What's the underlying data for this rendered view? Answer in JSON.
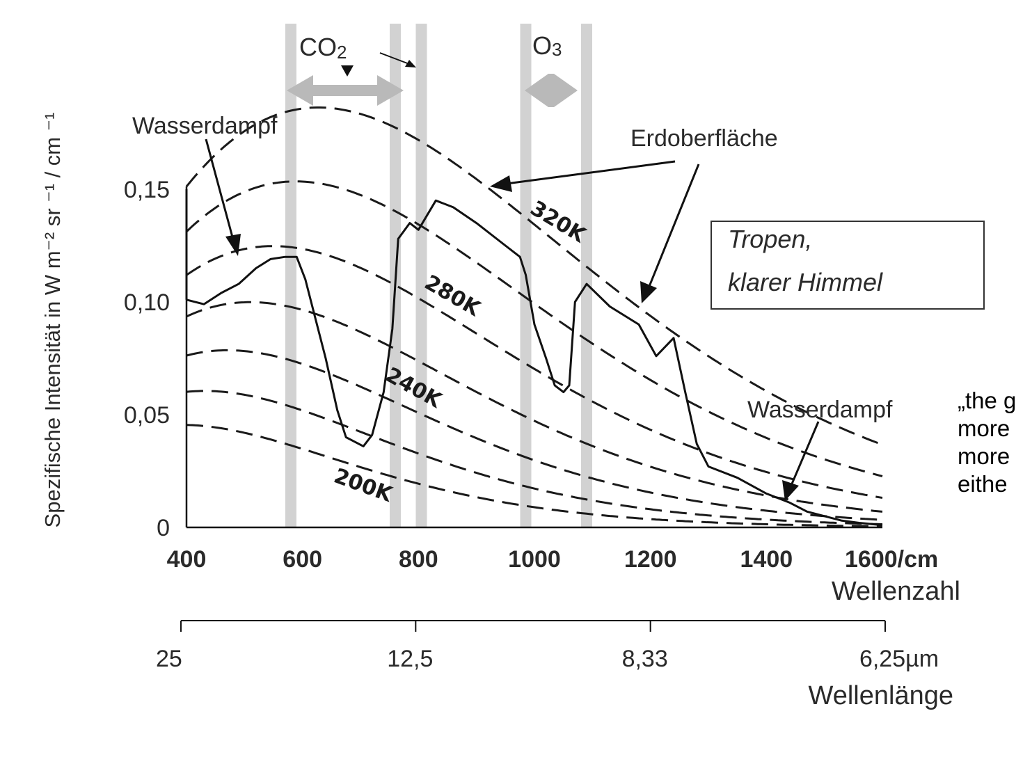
{
  "chart_data": {
    "type": "line",
    "ylabel": "Spezifische Intensität in W m⁻² sr ⁻¹ / cm ⁻¹",
    "xlabel": "Wellenzahl",
    "x_unit_label": "1600/cm",
    "x_ticks": [
      "400",
      "600",
      "800",
      "1000",
      "1200",
      "1400"
    ],
    "y_ticks": [
      "0,15",
      "0,10",
      "0,05",
      "0"
    ],
    "xlim": [
      400,
      1600
    ],
    "ylim": [
      0,
      0.15
    ],
    "secondary_axis": {
      "label": "Wellenlänge",
      "ticks": [
        {
          "label": "25",
          "wavenumber": 400
        },
        {
          "label": "12,5",
          "wavenumber": 800
        },
        {
          "label": "8,33",
          "wavenumber": 1200
        },
        {
          "label": "6,25µm",
          "wavenumber": 1600
        }
      ]
    },
    "planck_curves": [
      {
        "name": "320K",
        "temperature": 320
      },
      {
        "name": "300K",
        "temperature": 300
      },
      {
        "name": "280K",
        "temperature": 280
      },
      {
        "name": "260K",
        "temperature": 260
      },
      {
        "name": "240K",
        "temperature": 240
      },
      {
        "name": "220K",
        "temperature": 220
      },
      {
        "name": "200K",
        "temperature": 200
      }
    ],
    "temperature_labels": [
      "320K",
      "280K",
      "240K",
      "200K"
    ],
    "absorption_bands": [
      {
        "name": "CO2",
        "from": 580,
        "to": 780
      },
      {
        "name": "O3",
        "from": 985,
        "to": 1090
      }
    ],
    "band_lines": [
      580,
      760,
      805,
      985,
      1090
    ],
    "annotations": [
      "Wasserdampf",
      "Erdoberfläche",
      "Wasserdampf"
    ],
    "band_labels": {
      "co2_main": "CO",
      "co2_sub": "2",
      "o3_main": "O",
      "o3_sub": "3"
    },
    "legend_box": {
      "line1": "Tropen,",
      "line2": "klarer Himmel"
    },
    "measured_spectrum": {
      "name": "measured",
      "x": [
        400,
        430,
        460,
        490,
        520,
        545,
        570,
        590,
        605,
        620,
        640,
        660,
        675,
        690,
        705,
        720,
        740,
        755,
        765,
        785,
        800,
        830,
        860,
        900,
        950,
        975,
        985,
        1000,
        1020,
        1035,
        1050,
        1060,
        1070,
        1090,
        1130,
        1180,
        1210,
        1240,
        1260,
        1280,
        1300,
        1320,
        1350,
        1400,
        1440,
        1470,
        1500,
        1530,
        1560,
        1600
      ],
      "y": [
        0.101,
        0.099,
        0.104,
        0.108,
        0.115,
        0.119,
        0.12,
        0.12,
        0.11,
        0.095,
        0.075,
        0.052,
        0.04,
        0.038,
        0.036,
        0.041,
        0.06,
        0.088,
        0.128,
        0.135,
        0.132,
        0.145,
        0.142,
        0.135,
        0.125,
        0.12,
        0.112,
        0.09,
        0.075,
        0.063,
        0.06,
        0.063,
        0.1,
        0.108,
        0.098,
        0.09,
        0.076,
        0.084,
        0.06,
        0.037,
        0.027,
        0.025,
        0.022,
        0.015,
        0.011,
        0.007,
        0.005,
        0.003,
        0.002,
        0.001
      ]
    }
  },
  "side_note": {
    "line1": "„the g",
    "line2": " more",
    "line3": "more",
    "line4": "eithe"
  }
}
